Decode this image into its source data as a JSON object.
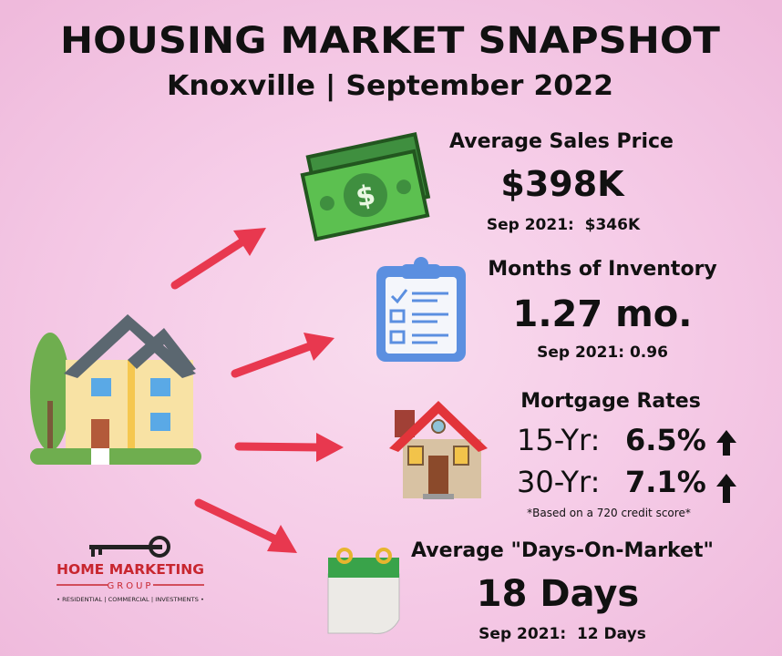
{
  "header": {
    "title": "HOUSING MARKET SNAPSHOT",
    "subtitle": "Knoxville | September 2022"
  },
  "metrics": [
    {
      "label": "Average Sales Price",
      "value": "$398K",
      "comparison": "Sep 2021:  $346K"
    },
    {
      "label": "Months of Inventory",
      "value": "1.27 mo.",
      "comparison": "Sep 2021: 0.96"
    },
    {
      "label": "Mortgage Rates",
      "rates": [
        {
          "term": "15-Yr:",
          "rate": "6.5%"
        },
        {
          "term": "30-Yr:",
          "rate": "7.1%"
        }
      ],
      "note": "*Based on a 720 credit score*"
    },
    {
      "label": "Average \"Days-On-Market\"",
      "value": "18 Days",
      "comparison": "Sep 2021:  12 Days"
    }
  ],
  "logo": {
    "name": "HOME MARKETING",
    "group": "GROUP",
    "tagline": "• RESIDENTIAL | COMMERCIAL | INVESTMENTS •"
  }
}
